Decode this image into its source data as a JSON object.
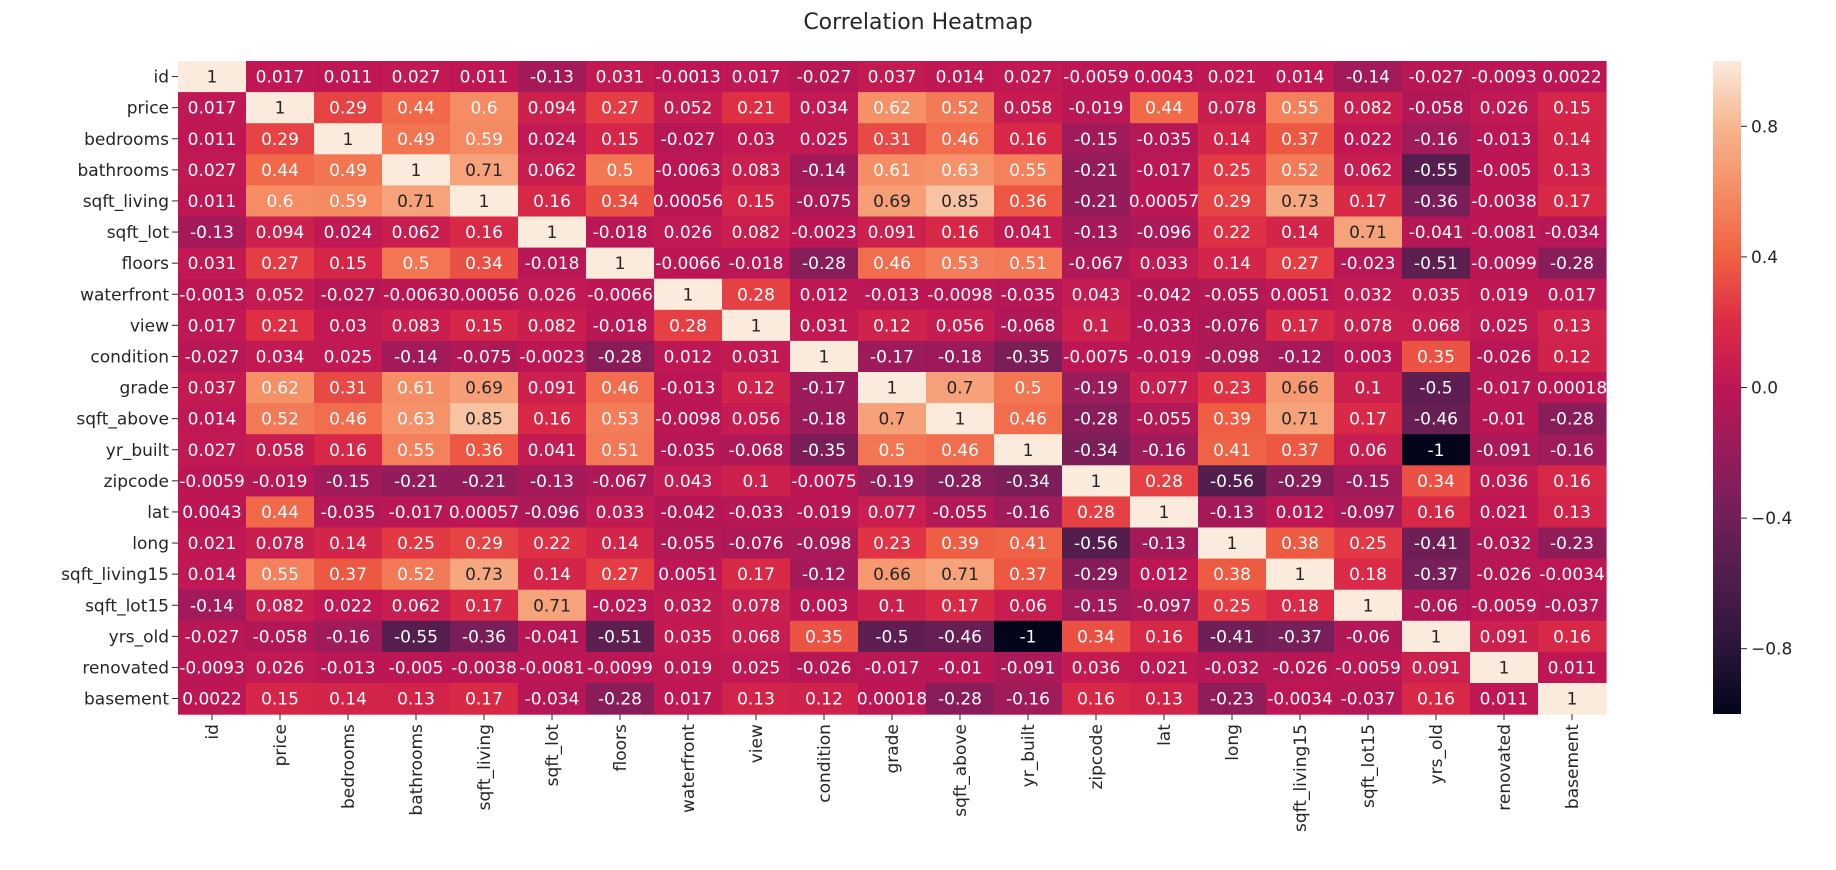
{
  "chart_data": {
    "type": "heatmap",
    "title": "Correlation Heatmap",
    "colormap": "rocket",
    "vmin": -1,
    "vmax": 1,
    "colorbar": {
      "ticks": [
        "−0.8",
        "−0.4",
        "0.0",
        "0.4",
        "0.8"
      ],
      "tick_values": [
        -0.8,
        -0.4,
        0.0,
        0.4,
        0.8
      ]
    },
    "labels": [
      "id",
      "price",
      "bedrooms",
      "bathrooms",
      "sqft_living",
      "sqft_lot",
      "floors",
      "waterfront",
      "view",
      "condition",
      "grade",
      "sqft_above",
      "yr_built",
      "zipcode",
      "lat",
      "long",
      "sqft_living15",
      "sqft_lot15",
      "yrs_old",
      "renovated",
      "basement"
    ],
    "cells": [
      [
        "1",
        "0.017",
        "0.011",
        "0.027",
        "0.011",
        "-0.13",
        "0.031",
        "-0.0013",
        "0.017",
        "-0.027",
        "0.037",
        "0.014",
        "0.027",
        "-0.0059",
        "0.0043",
        "0.021",
        "0.014",
        "-0.14",
        "-0.027",
        "-0.0093",
        "0.0022"
      ],
      [
        "0.017",
        "1",
        "0.29",
        "0.44",
        "0.6",
        "0.094",
        "0.27",
        "0.052",
        "0.21",
        "0.034",
        "0.62",
        "0.52",
        "0.058",
        "-0.019",
        "0.44",
        "0.078",
        "0.55",
        "0.082",
        "-0.058",
        "0.026",
        "0.15"
      ],
      [
        "0.011",
        "0.29",
        "1",
        "0.49",
        "0.59",
        "0.024",
        "0.15",
        "-0.027",
        "0.03",
        "0.025",
        "0.31",
        "0.46",
        "0.16",
        "-0.15",
        "-0.035",
        "0.14",
        "0.37",
        "0.022",
        "-0.16",
        "-0.013",
        "0.14"
      ],
      [
        "0.027",
        "0.44",
        "0.49",
        "1",
        "0.71",
        "0.062",
        "0.5",
        "-0.0063",
        "0.083",
        "-0.14",
        "0.61",
        "0.63",
        "0.55",
        "-0.21",
        "-0.017",
        "0.25",
        "0.52",
        "0.062",
        "-0.55",
        "-0.005",
        "0.13"
      ],
      [
        "0.011",
        "0.6",
        "0.59",
        "0.71",
        "1",
        "0.16",
        "0.34",
        "0.00056",
        "0.15",
        "-0.075",
        "0.69",
        "0.85",
        "0.36",
        "-0.21",
        "0.00057",
        "0.29",
        "0.73",
        "0.17",
        "-0.36",
        "-0.0038",
        "0.17"
      ],
      [
        "-0.13",
        "0.094",
        "0.024",
        "0.062",
        "0.16",
        "1",
        "-0.018",
        "0.026",
        "0.082",
        "-0.0023",
        "0.091",
        "0.16",
        "0.041",
        "-0.13",
        "-0.096",
        "0.22",
        "0.14",
        "0.71",
        "-0.041",
        "-0.0081",
        "-0.034"
      ],
      [
        "0.031",
        "0.27",
        "0.15",
        "0.5",
        "0.34",
        "-0.018",
        "1",
        "-0.0066",
        "-0.018",
        "-0.28",
        "0.46",
        "0.53",
        "0.51",
        "-0.067",
        "0.033",
        "0.14",
        "0.27",
        "-0.023",
        "-0.51",
        "-0.0099",
        "-0.28"
      ],
      [
        "-0.0013",
        "0.052",
        "-0.027",
        "-0.0063",
        "0.00056",
        "0.026",
        "-0.0066",
        "1",
        "0.28",
        "0.012",
        "-0.013",
        "-0.0098",
        "-0.035",
        "0.043",
        "-0.042",
        "-0.055",
        "0.0051",
        "0.032",
        "0.035",
        "0.019",
        "0.017"
      ],
      [
        "0.017",
        "0.21",
        "0.03",
        "0.083",
        "0.15",
        "0.082",
        "-0.018",
        "0.28",
        "1",
        "0.031",
        "0.12",
        "0.056",
        "-0.068",
        "0.1",
        "-0.033",
        "-0.076",
        "0.17",
        "0.078",
        "0.068",
        "0.025",
        "0.13"
      ],
      [
        "-0.027",
        "0.034",
        "0.025",
        "-0.14",
        "-0.075",
        "-0.0023",
        "-0.28",
        "0.012",
        "0.031",
        "1",
        "-0.17",
        "-0.18",
        "-0.35",
        "-0.0075",
        "-0.019",
        "-0.098",
        "-0.12",
        "0.003",
        "0.35",
        "-0.026",
        "0.12"
      ],
      [
        "0.037",
        "0.62",
        "0.31",
        "0.61",
        "0.69",
        "0.091",
        "0.46",
        "-0.013",
        "0.12",
        "-0.17",
        "1",
        "0.7",
        "0.5",
        "-0.19",
        "0.077",
        "0.23",
        "0.66",
        "0.1",
        "-0.5",
        "-0.017",
        "0.00018"
      ],
      [
        "0.014",
        "0.52",
        "0.46",
        "0.63",
        "0.85",
        "0.16",
        "0.53",
        "-0.0098",
        "0.056",
        "-0.18",
        "0.7",
        "1",
        "0.46",
        "-0.28",
        "-0.055",
        "0.39",
        "0.71",
        "0.17",
        "-0.46",
        "-0.01",
        "-0.28"
      ],
      [
        "0.027",
        "0.058",
        "0.16",
        "0.55",
        "0.36",
        "0.041",
        "0.51",
        "-0.035",
        "-0.068",
        "-0.35",
        "0.5",
        "0.46",
        "1",
        "-0.34",
        "-0.16",
        "0.41",
        "0.37",
        "0.06",
        "-1",
        "-0.091",
        "-0.16"
      ],
      [
        "-0.0059",
        "-0.019",
        "-0.15",
        "-0.21",
        "-0.21",
        "-0.13",
        "-0.067",
        "0.043",
        "0.1",
        "-0.0075",
        "-0.19",
        "-0.28",
        "-0.34",
        "1",
        "0.28",
        "-0.56",
        "-0.29",
        "-0.15",
        "0.34",
        "0.036",
        "0.16"
      ],
      [
        "0.0043",
        "0.44",
        "-0.035",
        "-0.017",
        "0.00057",
        "-0.096",
        "0.033",
        "-0.042",
        "-0.033",
        "-0.019",
        "0.077",
        "-0.055",
        "-0.16",
        "0.28",
        "1",
        "-0.13",
        "0.012",
        "-0.097",
        "0.16",
        "0.021",
        "0.13"
      ],
      [
        "0.021",
        "0.078",
        "0.14",
        "0.25",
        "0.29",
        "0.22",
        "0.14",
        "-0.055",
        "-0.076",
        "-0.098",
        "0.23",
        "0.39",
        "0.41",
        "-0.56",
        "-0.13",
        "1",
        "0.38",
        "0.25",
        "-0.41",
        "-0.032",
        "-0.23"
      ],
      [
        "0.014",
        "0.55",
        "0.37",
        "0.52",
        "0.73",
        "0.14",
        "0.27",
        "0.0051",
        "0.17",
        "-0.12",
        "0.66",
        "0.71",
        "0.37",
        "-0.29",
        "0.012",
        "0.38",
        "1",
        "0.18",
        "-0.37",
        "-0.026",
        "-0.0034"
      ],
      [
        "-0.14",
        "0.082",
        "0.022",
        "0.062",
        "0.17",
        "0.71",
        "-0.023",
        "0.032",
        "0.078",
        "0.003",
        "0.1",
        "0.17",
        "0.06",
        "-0.15",
        "-0.097",
        "0.25",
        "0.18",
        "1",
        "-0.06",
        "-0.0059",
        "-0.037"
      ],
      [
        "-0.027",
        "-0.058",
        "-0.16",
        "-0.55",
        "-0.36",
        "-0.041",
        "-0.51",
        "0.035",
        "0.068",
        "0.35",
        "-0.5",
        "-0.46",
        "-1",
        "0.34",
        "0.16",
        "-0.41",
        "-0.37",
        "-0.06",
        "1",
        "0.091",
        "0.16"
      ],
      [
        "-0.0093",
        "0.026",
        "-0.013",
        "-0.005",
        "-0.0038",
        "-0.0081",
        "-0.0099",
        "0.019",
        "0.025",
        "-0.026",
        "-0.017",
        "-0.01",
        "-0.091",
        "0.036",
        "0.021",
        "-0.032",
        "-0.026",
        "-0.0059",
        "0.091",
        "1",
        "0.011"
      ],
      [
        "0.0022",
        "0.15",
        "0.14",
        "0.13",
        "0.17",
        "-0.034",
        "-0.28",
        "0.017",
        "0.13",
        "0.12",
        "0.00018",
        "-0.28",
        "-0.16",
        "0.16",
        "0.13",
        "-0.23",
        "-0.0034",
        "-0.037",
        "0.16",
        "0.011",
        "1"
      ]
    ]
  }
}
